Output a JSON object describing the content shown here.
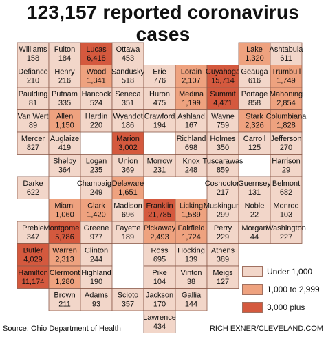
{
  "title": "123,157 reported coronavirus cases",
  "source": "Source: Ohio Department of Health",
  "credit": "RICH EXNER/CLEVELAND.COM",
  "colors": {
    "low": "#f2d6c9",
    "mid": "#eea27f",
    "high": "#d4593e",
    "border": "#8b5a4a",
    "lake": "#ffffff"
  },
  "legend": [
    {
      "label": "Under 1,000",
      "tier": "low"
    },
    {
      "label": "1,000 to 2,999",
      "tier": "mid"
    },
    {
      "label": "3,000 plus",
      "tier": "high"
    }
  ],
  "counties": [
    {
      "name": "Williams",
      "cases": "158",
      "tier": "low",
      "col": 0,
      "row": 0
    },
    {
      "name": "Fulton",
      "cases": "184",
      "tier": "low",
      "col": 1,
      "row": 0
    },
    {
      "name": "Lucas",
      "cases": "6,418",
      "tier": "high",
      "col": 2,
      "row": 0
    },
    {
      "name": "Ottawa",
      "cases": "453",
      "tier": "low",
      "col": 3,
      "row": 0
    },
    {
      "name": "Lake",
      "cases": "1,320",
      "tier": "mid",
      "col": 7,
      "row": 0
    },
    {
      "name": "Ashtabula",
      "cases": "611",
      "tier": "low",
      "col": 8,
      "row": 0
    },
    {
      "name": "Defiance",
      "cases": "210",
      "tier": "low",
      "col": 0,
      "row": 1
    },
    {
      "name": "Henry",
      "cases": "216",
      "tier": "low",
      "col": 1,
      "row": 1
    },
    {
      "name": "Wood",
      "cases": "1,341",
      "tier": "mid",
      "col": 2,
      "row": 1
    },
    {
      "name": "Sandusky",
      "cases": "518",
      "tier": "low",
      "col": 3,
      "row": 1
    },
    {
      "name": "Erie",
      "cases": "776",
      "tier": "low",
      "col": 4,
      "row": 1
    },
    {
      "name": "Lorain",
      "cases": "2,107",
      "tier": "mid",
      "col": 5,
      "row": 1
    },
    {
      "name": "Cuyahoga",
      "cases": "15,714",
      "tier": "high",
      "col": 6,
      "row": 1
    },
    {
      "name": "Geauga",
      "cases": "616",
      "tier": "low",
      "col": 7,
      "row": 1
    },
    {
      "name": "Trumbull",
      "cases": "1,749",
      "tier": "mid",
      "col": 8,
      "row": 1
    },
    {
      "name": "Paulding",
      "cases": "81",
      "tier": "low",
      "col": 0,
      "row": 2
    },
    {
      "name": "Putnam",
      "cases": "335",
      "tier": "low",
      "col": 1,
      "row": 2
    },
    {
      "name": "Hancock",
      "cases": "524",
      "tier": "low",
      "col": 2,
      "row": 2
    },
    {
      "name": "Seneca",
      "cases": "351",
      "tier": "low",
      "col": 3,
      "row": 2
    },
    {
      "name": "Huron",
      "cases": "475",
      "tier": "low",
      "col": 4,
      "row": 2
    },
    {
      "name": "Medina",
      "cases": "1,199",
      "tier": "mid",
      "col": 5,
      "row": 2
    },
    {
      "name": "Summit",
      "cases": "4,471",
      "tier": "high",
      "col": 6,
      "row": 2
    },
    {
      "name": "Portage",
      "cases": "858",
      "tier": "low",
      "col": 7,
      "row": 2
    },
    {
      "name": "Mahoning",
      "cases": "2,854",
      "tier": "mid",
      "col": 8,
      "row": 2
    },
    {
      "name": "Van Wert",
      "cases": "89",
      "tier": "low",
      "col": 0,
      "row": 3
    },
    {
      "name": "Allen",
      "cases": "1,150",
      "tier": "mid",
      "col": 1,
      "row": 3
    },
    {
      "name": "Hardin",
      "cases": "220",
      "tier": "low",
      "col": 2,
      "row": 3
    },
    {
      "name": "Wyandot",
      "cases": "186",
      "tier": "low",
      "col": 3,
      "row": 3
    },
    {
      "name": "Crawford",
      "cases": "194",
      "tier": "low",
      "col": 4,
      "row": 3
    },
    {
      "name": "Ashland",
      "cases": "167",
      "tier": "low",
      "col": 5,
      "row": 3
    },
    {
      "name": "Wayne",
      "cases": "759",
      "tier": "low",
      "col": 6,
      "row": 3
    },
    {
      "name": "Stark",
      "cases": "2,326",
      "tier": "mid",
      "col": 7,
      "row": 3
    },
    {
      "name": "Columbiana",
      "cases": "1,828",
      "tier": "mid",
      "col": 8,
      "row": 3
    },
    {
      "name": "Mercer",
      "cases": "827",
      "tier": "low",
      "col": 0,
      "row": 4
    },
    {
      "name": "Auglaize",
      "cases": "419",
      "tier": "low",
      "col": 1,
      "row": 4
    },
    {
      "name": "Marion",
      "cases": "3,002",
      "tier": "high",
      "col": 3,
      "row": 4
    },
    {
      "name": "Richland",
      "cases": "698",
      "tier": "low",
      "col": 5,
      "row": 4
    },
    {
      "name": "Holmes",
      "cases": "350",
      "tier": "low",
      "col": 6,
      "row": 4
    },
    {
      "name": "Carroll",
      "cases": "125",
      "tier": "low",
      "col": 7,
      "row": 4
    },
    {
      "name": "Jefferson",
      "cases": "270",
      "tier": "low",
      "col": 8,
      "row": 4
    },
    {
      "name": "Shelby",
      "cases": "364",
      "tier": "low",
      "col": 1,
      "row": 5
    },
    {
      "name": "Logan",
      "cases": "235",
      "tier": "low",
      "col": 2,
      "row": 5
    },
    {
      "name": "Union",
      "cases": "369",
      "tier": "low",
      "col": 3,
      "row": 5
    },
    {
      "name": "Morrow",
      "cases": "231",
      "tier": "low",
      "col": 4,
      "row": 5
    },
    {
      "name": "Knox",
      "cases": "248",
      "tier": "low",
      "col": 5,
      "row": 5
    },
    {
      "name": "Tuscarawas",
      "cases": "859",
      "tier": "low",
      "col": 6,
      "row": 5
    },
    {
      "name": "Harrison",
      "cases": "29",
      "tier": "low",
      "col": 8,
      "row": 5
    },
    {
      "name": "Darke",
      "cases": "622",
      "tier": "low",
      "col": 0,
      "row": 6
    },
    {
      "name": "Champaign",
      "cases": "249",
      "tier": "low",
      "col": 2,
      "row": 6
    },
    {
      "name": "Delaware",
      "cases": "1,651",
      "tier": "mid",
      "col": 3,
      "row": 6
    },
    {
      "name": "Coshocton",
      "cases": "217",
      "tier": "low",
      "col": 6,
      "row": 6
    },
    {
      "name": "Guernsey",
      "cases": "131",
      "tier": "low",
      "col": 7,
      "row": 6
    },
    {
      "name": "Belmont",
      "cases": "682",
      "tier": "low",
      "col": 8,
      "row": 6
    },
    {
      "name": "Miami",
      "cases": "1,060",
      "tier": "mid",
      "col": 1,
      "row": 7
    },
    {
      "name": "Clark",
      "cases": "1,420",
      "tier": "mid",
      "col": 2,
      "row": 7
    },
    {
      "name": "Madison",
      "cases": "696",
      "tier": "low",
      "col": 3,
      "row": 7
    },
    {
      "name": "Franklin",
      "cases": "21,785",
      "tier": "high",
      "col": 4,
      "row": 7
    },
    {
      "name": "Licking",
      "cases": "1,589",
      "tier": "mid",
      "col": 5,
      "row": 7
    },
    {
      "name": "Muskingum",
      "cases": "299",
      "tier": "low",
      "col": 6,
      "row": 7
    },
    {
      "name": "Noble",
      "cases": "22",
      "tier": "low",
      "col": 7,
      "row": 7
    },
    {
      "name": "Monroe",
      "cases": "103",
      "tier": "low",
      "col": 8,
      "row": 7
    },
    {
      "name": "Preble",
      "cases": "347",
      "tier": "low",
      "col": 0,
      "row": 8
    },
    {
      "name": "Montgomery",
      "cases": "5,786",
      "tier": "high",
      "col": 1,
      "row": 8
    },
    {
      "name": "Greene",
      "cases": "977",
      "tier": "low",
      "col": 2,
      "row": 8
    },
    {
      "name": "Fayette",
      "cases": "189",
      "tier": "low",
      "col": 3,
      "row": 8
    },
    {
      "name": "Pickaway",
      "cases": "2,493",
      "tier": "mid",
      "col": 4,
      "row": 8
    },
    {
      "name": "Fairfield",
      "cases": "1,724",
      "tier": "mid",
      "col": 5,
      "row": 8
    },
    {
      "name": "Perry",
      "cases": "229",
      "tier": "low",
      "col": 6,
      "row": 8
    },
    {
      "name": "Morgan",
      "cases": "44",
      "tier": "low",
      "col": 7,
      "row": 8
    },
    {
      "name": "Washington",
      "cases": "227",
      "tier": "low",
      "col": 8,
      "row": 8
    },
    {
      "name": "Butler",
      "cases": "4,029",
      "tier": "high",
      "col": 0,
      "row": 9
    },
    {
      "name": "Warren",
      "cases": "2,313",
      "tier": "mid",
      "col": 1,
      "row": 9
    },
    {
      "name": "Clinton",
      "cases": "244",
      "tier": "low",
      "col": 2,
      "row": 9
    },
    {
      "name": "Ross",
      "cases": "695",
      "tier": "low",
      "col": 4,
      "row": 9
    },
    {
      "name": "Hocking",
      "cases": "139",
      "tier": "low",
      "col": 5,
      "row": 9
    },
    {
      "name": "Athens",
      "cases": "389",
      "tier": "low",
      "col": 6,
      "row": 9
    },
    {
      "name": "Hamilton",
      "cases": "11,174",
      "tier": "high",
      "col": 0,
      "row": 10
    },
    {
      "name": "Clermont",
      "cases": "1,280",
      "tier": "mid",
      "col": 1,
      "row": 10
    },
    {
      "name": "Highland",
      "cases": "190",
      "tier": "low",
      "col": 2,
      "row": 10
    },
    {
      "name": "Pike",
      "cases": "104",
      "tier": "low",
      "col": 4,
      "row": 10
    },
    {
      "name": "Vinton",
      "cases": "38",
      "tier": "low",
      "col": 5,
      "row": 10
    },
    {
      "name": "Meigs",
      "cases": "127",
      "tier": "low",
      "col": 6,
      "row": 10
    },
    {
      "name": "Brown",
      "cases": "211",
      "tier": "low",
      "col": 1,
      "row": 11
    },
    {
      "name": "Adams",
      "cases": "93",
      "tier": "low",
      "col": 2,
      "row": 11
    },
    {
      "name": "Scioto",
      "cases": "357",
      "tier": "low",
      "col": 3,
      "row": 11
    },
    {
      "name": "Jackson",
      "cases": "170",
      "tier": "low",
      "col": 4,
      "row": 11
    },
    {
      "name": "Gallia",
      "cases": "144",
      "tier": "low",
      "col": 5,
      "row": 11
    },
    {
      "name": "Lawrence",
      "cases": "434",
      "tier": "low",
      "col": 4,
      "row": 12
    }
  ]
}
